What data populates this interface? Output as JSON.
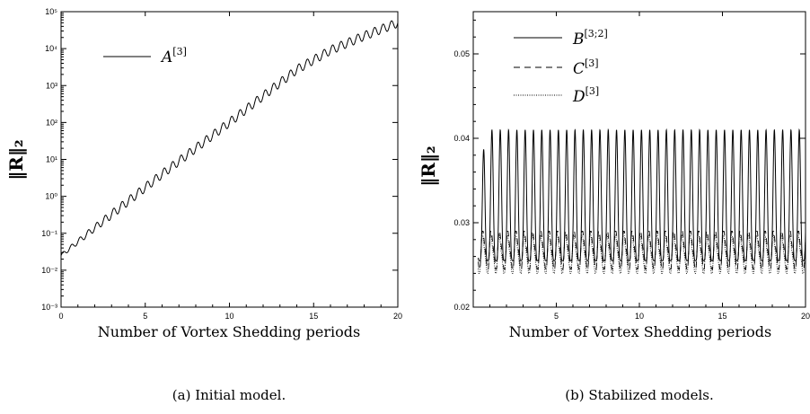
{
  "chart_data": [
    {
      "type": "line",
      "ylabel": "‖R‖₂",
      "xlabel": "Number of Vortex Shedding periods",
      "caption": "(a) Initial model.",
      "xlim": [
        0,
        20
      ],
      "ylim": [
        0.001,
        100000
      ],
      "yscale": "log",
      "grid": false,
      "legend_placement": "top-left",
      "x_ticks": [
        "0",
        "5",
        "10",
        "15",
        "20"
      ],
      "y_ticks": [
        "10⁻³",
        "10⁻²",
        "10⁻¹",
        "10⁰",
        "10¹",
        "10²",
        "10³",
        "10⁴",
        "10⁵"
      ],
      "series": [
        {
          "name": "A",
          "name_sup": "[3]",
          "style": "solid",
          "x": [
            0,
            2,
            4,
            6,
            8,
            10,
            12,
            14,
            16,
            18,
            20
          ],
          "y": [
            0.025,
            0.14,
            0.75,
            4.0,
            20,
            100,
            520,
            2700,
            9000,
            22000,
            50000
          ],
          "oscillation_periods": 2
        }
      ]
    },
    {
      "type": "line",
      "ylabel": "‖R‖₂",
      "xlabel": "Number of Vortex Shedding periods",
      "caption": "(b) Stabilized models.",
      "xlim": [
        0,
        20
      ],
      "ylim": [
        0.02,
        0.055
      ],
      "grid": false,
      "legend_placement": "top-left",
      "x_ticks": [
        "5",
        "10",
        "15",
        "20"
      ],
      "y_ticks": [
        "0.02",
        "0.03",
        "0.04",
        "0.05"
      ],
      "series": [
        {
          "name": "B",
          "name_sup": "[3;2]",
          "style": "solid",
          "min": 0.0255,
          "max": 0.041,
          "oscillation_periods": 2
        },
        {
          "name": "C",
          "name_sup": "[3]",
          "style": "dashed",
          "min": 0.0245,
          "max": 0.029,
          "oscillation_periods": 2
        },
        {
          "name": "D",
          "name_sup": "[3]",
          "style": "dotted",
          "min": 0.024,
          "max": 0.0285,
          "oscillation_periods": 2
        }
      ]
    }
  ]
}
